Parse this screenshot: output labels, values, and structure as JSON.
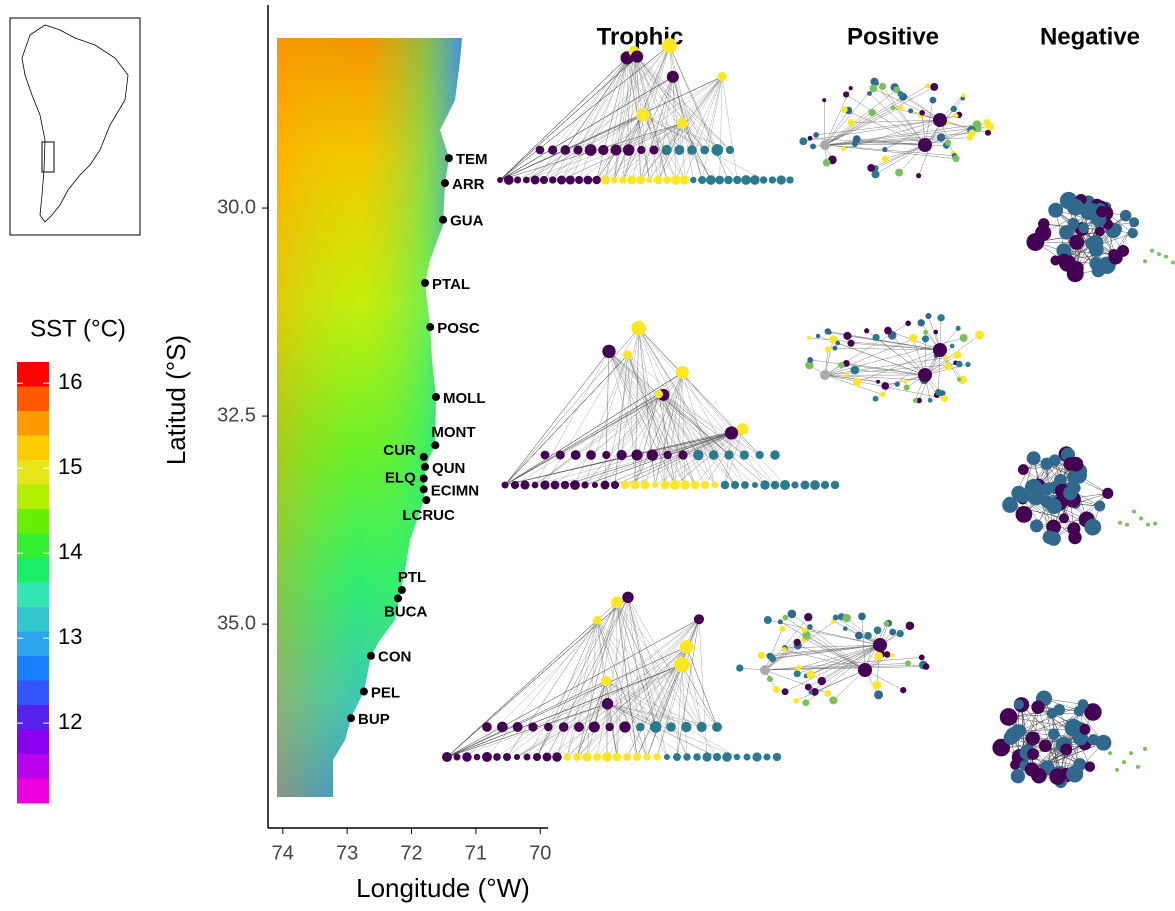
{
  "chart_data": {
    "type": "map",
    "xlabel": "Longitude (°W)",
    "ylabel": "Latitud (°S)",
    "xlim": [
      74.23,
      69.88
    ],
    "ylim": [
      27.56,
      37.45
    ],
    "xticks": [
      74,
      73,
      72,
      71,
      70
    ],
    "yticks": [
      {
        "value": 30,
        "label": "30.0"
      },
      {
        "value": 32.5,
        "label": "32.5"
      },
      {
        "value": 35,
        "label": "35.0"
      }
    ],
    "colorbar": {
      "title": "SST (°C)",
      "lim": [
        11.06,
        16.25
      ],
      "ticks": [
        12,
        13,
        14,
        15,
        16
      ],
      "colors": [
        "#ff0000",
        "#ff5a00",
        "#ff9900",
        "#ffcc00",
        "#e6e619",
        "#b3f000",
        "#66f000",
        "#33f033",
        "#1aee66",
        "#33e6b3",
        "#33c6cc",
        "#29a6ee",
        "#1a80ff",
        "#3355ff",
        "#5522ee",
        "#8800ee",
        "#bb00ee",
        "#ee00dd"
      ]
    },
    "sites": [
      {
        "name": "TEM",
        "lon": 71.42,
        "lat": 29.4
      },
      {
        "name": "ARR",
        "lon": 71.48,
        "lat": 29.7
      },
      {
        "name": "GUA",
        "lon": 71.51,
        "lat": 30.14
      },
      {
        "name": "PTAL",
        "lon": 71.79,
        "lat": 30.9
      },
      {
        "name": "POSC",
        "lon": 71.71,
        "lat": 31.43
      },
      {
        "name": "MOLL",
        "lon": 71.62,
        "lat": 32.27
      },
      {
        "name": "MONT",
        "lon": 71.63,
        "lat": 32.85
      },
      {
        "name": "CUR",
        "lon": 71.81,
        "lat": 32.99
      },
      {
        "name": "QUN",
        "lon": 71.79,
        "lat": 33.11
      },
      {
        "name": "ELQ",
        "lon": 71.81,
        "lat": 33.25
      },
      {
        "name": "ECIMN",
        "lon": 71.81,
        "lat": 33.38
      },
      {
        "name": "LCRUC",
        "lon": 71.77,
        "lat": 33.51
      },
      {
        "name": "PTL",
        "lon": 72.15,
        "lat": 34.59
      },
      {
        "name": "BUCA",
        "lon": 72.21,
        "lat": 34.69
      },
      {
        "name": "CON",
        "lon": 72.63,
        "lat": 35.38
      },
      {
        "name": "PEL",
        "lon": 72.74,
        "lat": 35.81
      },
      {
        "name": "BUP",
        "lon": 72.94,
        "lat": 36.13
      }
    ],
    "network_titles": [
      "Trophic",
      "Positive",
      "Negative"
    ]
  }
}
